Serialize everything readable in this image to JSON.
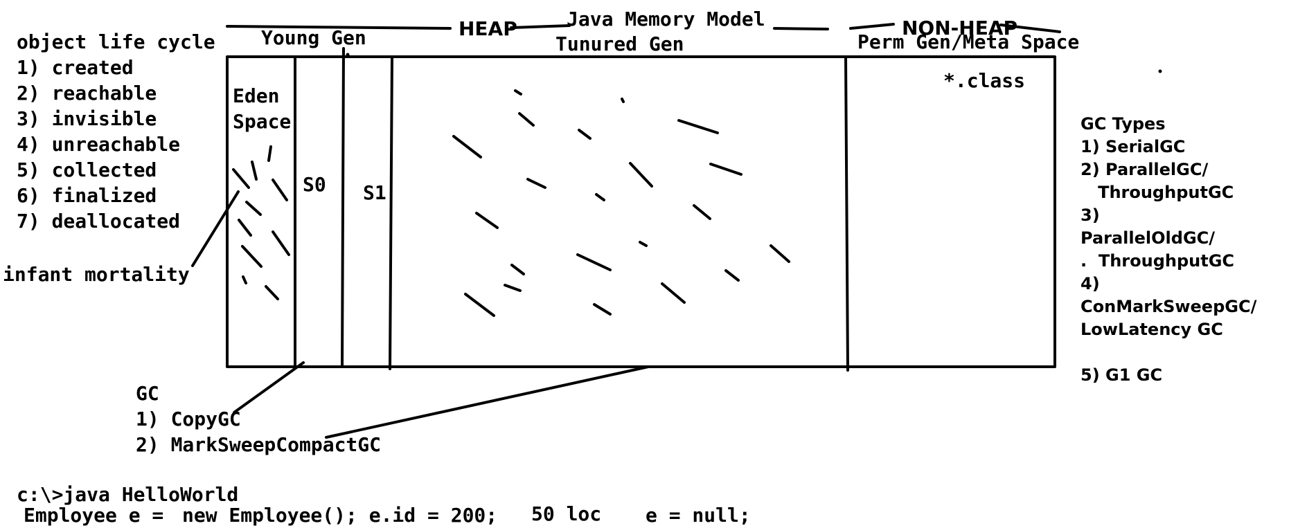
{
  "title": "Java Memory Model",
  "header": {
    "heap": "HEAP",
    "non_heap": "NON-HEAP",
    "young_gen": "Young Gen",
    "tenured_gen": "Tunured Gen",
    "perm_gen": "Perm Gen/Meta Space"
  },
  "regions": {
    "eden_line1": "Eden",
    "eden_line2": "Space",
    "s0": "S0",
    "s1": "S1",
    "class_files": "*.class"
  },
  "life_cycle": {
    "heading": "object life cycle",
    "items": [
      "1) created",
      "2) reachable",
      "3) invisible",
      "4) unreachable",
      "5) collected",
      "6) finalized",
      "7) deallocated"
    ],
    "infant_mortality": "infant mortality"
  },
  "gc_young_old": {
    "heading": "GC",
    "items": [
      "1) CopyGC",
      "2) MarkSweepCompactGC"
    ]
  },
  "gc_types": {
    "heading": "GC Types",
    "lines": [
      "1) SerialGC",
      "2) ParallelGC/",
      "   ThroughputGC",
      "3)",
      "ParallelOldGC/",
      ".  ThroughputGC",
      "4)",
      "ConMarkSweepGC/",
      "LowLatency GC",
      "",
      "5) G1 GC"
    ]
  },
  "code": {
    "line1": "c:\\>java HelloWorld",
    "line2_a": "Employee e =",
    "line2_b": "new Employee(); e.id = 200;",
    "line2_c": "50 loc",
    "line2_d": "e = null;"
  }
}
